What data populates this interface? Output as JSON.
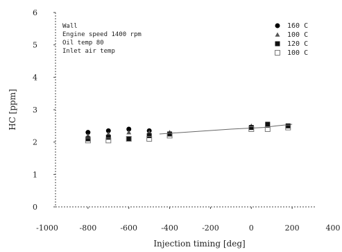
{
  "chart_data": {
    "type": "scatter",
    "xlabel": "Injection timing [deg]",
    "ylabel": "HC [ppm]",
    "xlim": [
      -1000,
      300
    ],
    "ylim": [
      0,
      6
    ],
    "xticks": [
      -1000,
      -800,
      -600,
      -400,
      -200,
      0,
      200,
      400
    ],
    "xtick_labels": [
      "-1000",
      "-800",
      "-600",
      "-400",
      "-200",
      "0",
      "200",
      "400"
    ],
    "yticks": [
      0,
      1,
      2,
      3,
      4,
      5,
      6
    ],
    "ytick_labels": [
      "0",
      "1",
      "2",
      "3",
      "4",
      "5",
      "6"
    ],
    "grid": false,
    "legend_position": "top-right",
    "annotation_lines": [
      "Wall",
      "Engine speed 1400 rpm",
      "Oil temp 80",
      "Inlet air temp"
    ],
    "trend_line": {
      "x": [
        -450,
        -100,
        60,
        120,
        200
      ],
      "y": [
        2.25,
        2.4,
        2.45,
        2.5,
        2.55
      ]
    },
    "series": [
      {
        "name": "160 C",
        "marker": "circle",
        "color": "#000000",
        "x": [
          -800,
          -700,
          -600,
          -500
        ],
        "y": [
          2.3,
          2.35,
          2.4,
          2.35
        ]
      },
      {
        "name": "100 C",
        "marker": "triangle",
        "color": "#555555",
        "x": [
          -800,
          -700,
          -600,
          -500,
          -400,
          0,
          80,
          180
        ],
        "y": [
          2.2,
          2.25,
          2.3,
          2.3,
          2.3,
          2.5,
          2.5,
          2.5
        ]
      },
      {
        "name": "120 C",
        "marker": "square",
        "color": "#111111",
        "x": [
          -800,
          -700,
          -600,
          -500,
          -400,
          0,
          80,
          180
        ],
        "y": [
          2.1,
          2.15,
          2.1,
          2.2,
          2.25,
          2.45,
          2.55,
          2.5
        ]
      },
      {
        "name": "100 C",
        "marker": "open-square",
        "color": "#777777",
        "x": [
          -800,
          -700,
          -600,
          -500,
          -400,
          0,
          80,
          180
        ],
        "y": [
          2.05,
          2.05,
          2.1,
          2.1,
          2.2,
          2.4,
          2.4,
          2.45
        ]
      }
    ]
  }
}
